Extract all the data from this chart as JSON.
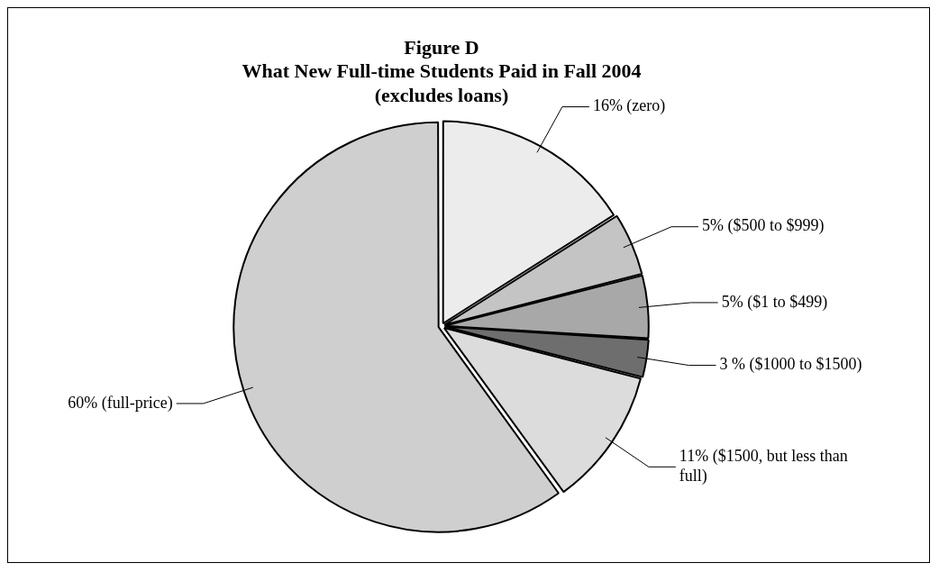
{
  "chart_data": {
    "type": "pie",
    "title": "Figure D\nWhat New Full-time Students Paid in Fall 2004\n(excludes loans)",
    "categories": [
      "(zero)",
      "($500 to $999)",
      "($1 to $499)",
      "($1000 to $1500)",
      "($1500, but less than full)",
      "(full-price)"
    ],
    "values": [
      16,
      5,
      5,
      3,
      11,
      60
    ],
    "value_labels": [
      "16%",
      "5%",
      "5%",
      "3 %",
      "11%",
      "60%"
    ],
    "colors": [
      "#ececec",
      "#c4c4c4",
      "#a8a8a8",
      "#6e6e6e",
      "#dcdcdc",
      "#cfcfcf"
    ],
    "legend": false
  }
}
